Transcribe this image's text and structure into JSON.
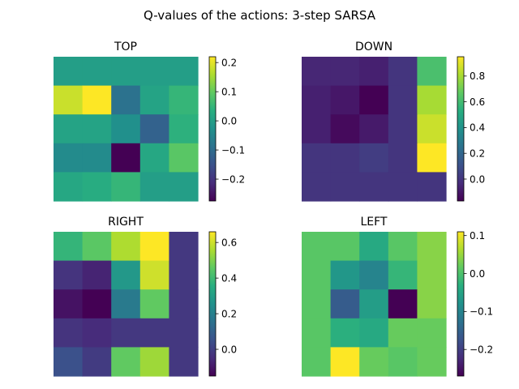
{
  "figure": {
    "title": "Q-values of the actions: 3-step SARSA"
  },
  "chart_data": [
    {
      "type": "heatmap",
      "title": "TOP",
      "colormap": "viridis",
      "vmin": -0.275,
      "vmax": 0.22,
      "colorbar_ticks": [
        0.2,
        0.1,
        0.0,
        -0.1,
        -0.2
      ],
      "colorbar_tick_labels": [
        "0.2",
        "0.1",
        "0.0",
        "−0.1",
        "−0.2"
      ],
      "grid": [
        [
          0.0,
          0.0,
          0.0,
          0.0,
          0.0
        ],
        [
          0.18,
          0.22,
          -0.09,
          0.01,
          0.05
        ],
        [
          0.01,
          0.01,
          -0.03,
          -0.12,
          0.04
        ],
        [
          -0.04,
          -0.04,
          -0.275,
          0.02,
          0.09
        ],
        [
          0.02,
          0.03,
          0.05,
          0.0,
          0.0
        ]
      ]
    },
    {
      "type": "heatmap",
      "title": "DOWN",
      "colormap": "viridis",
      "vmin": -0.17,
      "vmax": 0.95,
      "colorbar_ticks": [
        0.8,
        0.6,
        0.4,
        0.2,
        0.0
      ],
      "colorbar_tick_labels": [
        "0.8",
        "0.6",
        "0.4",
        "0.2",
        "0.0"
      ],
      "grid": [
        [
          -0.05,
          -0.05,
          -0.07,
          0.0,
          0.62
        ],
        [
          -0.07,
          -0.1,
          -0.17,
          0.0,
          0.8
        ],
        [
          -0.07,
          -0.14,
          -0.09,
          0.0,
          0.86
        ],
        [
          0.0,
          0.0,
          0.03,
          0.0,
          0.95
        ],
        [
          0.0,
          0.0,
          0.0,
          0.0,
          0.0
        ]
      ]
    },
    {
      "type": "heatmap",
      "title": "RIGHT",
      "colormap": "viridis",
      "vmin": -0.15,
      "vmax": 0.66,
      "colorbar_ticks": [
        0.6,
        0.4,
        0.2,
        0.0
      ],
      "colorbar_tick_labels": [
        "0.6",
        "0.4",
        "0.2",
        "0.0"
      ],
      "grid": [
        [
          0.38,
          0.45,
          0.56,
          0.66,
          -0.02
        ],
        [
          -0.03,
          -0.07,
          0.28,
          0.6,
          -0.02
        ],
        [
          -0.11,
          -0.15,
          0.18,
          0.46,
          -0.02
        ],
        [
          -0.03,
          -0.05,
          -0.02,
          -0.02,
          -0.02
        ],
        [
          0.05,
          -0.01,
          0.46,
          0.54,
          -0.02
        ]
      ]
    },
    {
      "type": "heatmap",
      "title": "LEFT",
      "colormap": "viridis",
      "vmin": -0.27,
      "vmax": 0.11,
      "colorbar_ticks": [
        0.1,
        0.0,
        -0.1,
        -0.2
      ],
      "colorbar_tick_labels": [
        "0.1",
        "0.0",
        "−0.1",
        "−0.2"
      ],
      "grid": [
        [
          0.01,
          0.01,
          -0.04,
          0.01,
          0.04
        ],
        [
          0.01,
          -0.07,
          -0.1,
          -0.02,
          0.04
        ],
        [
          0.01,
          -0.16,
          -0.06,
          -0.27,
          0.04
        ],
        [
          0.01,
          -0.03,
          -0.04,
          0.02,
          0.02
        ],
        [
          0.01,
          0.11,
          0.02,
          0.01,
          0.02
        ]
      ]
    }
  ]
}
